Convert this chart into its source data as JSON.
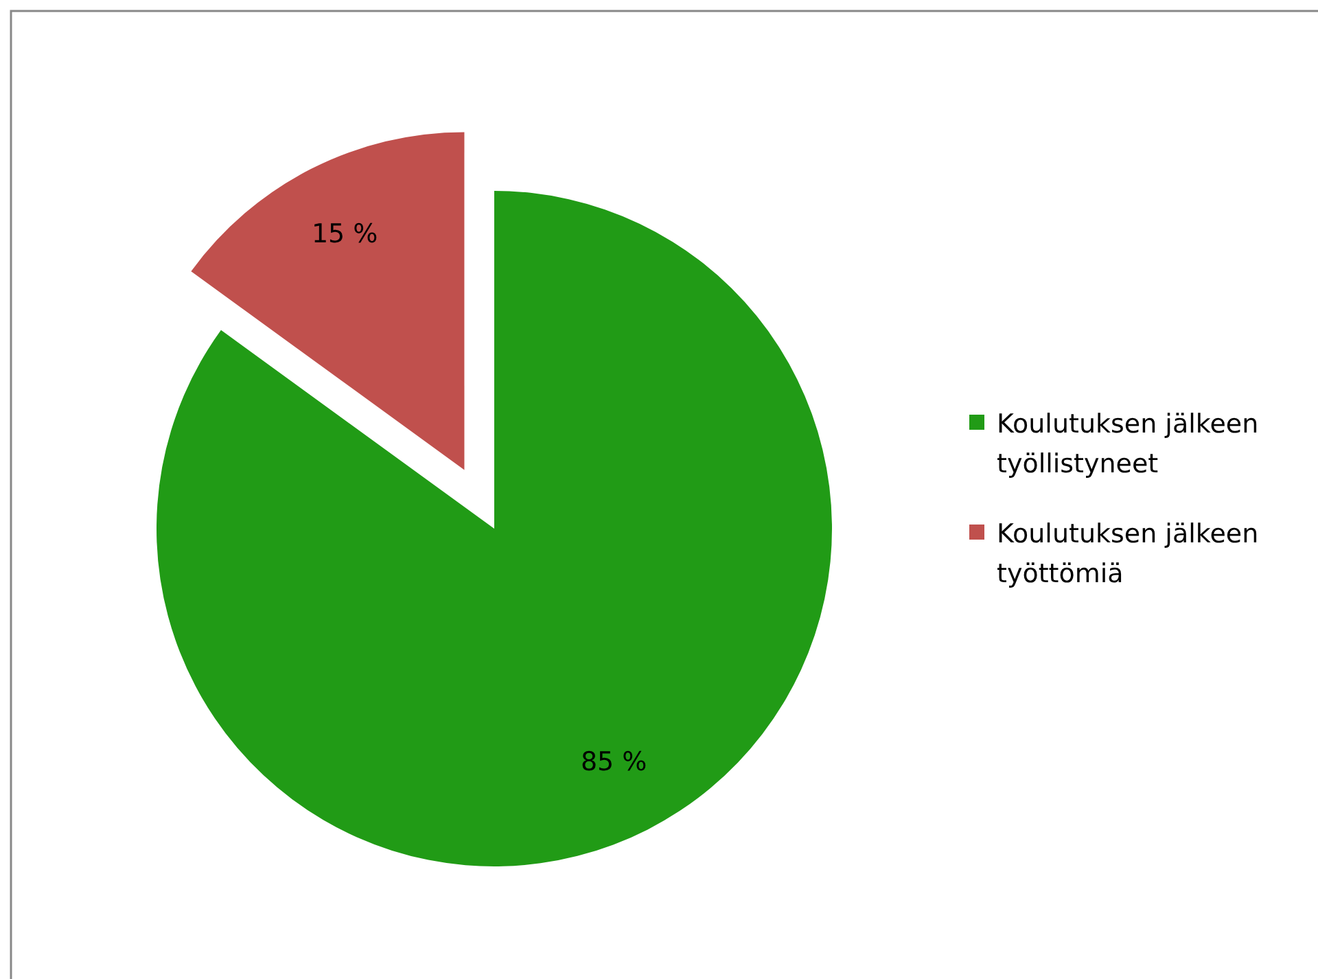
{
  "chart_data": {
    "type": "pie",
    "categories": [
      "Koulutuksen jälkeen työllistyneet",
      "Koulutuksen jälkeen työttömiä"
    ],
    "values": [
      85,
      15
    ],
    "colors": [
      "#219b16",
      "#c0504d"
    ],
    "value_labels": [
      "85 %",
      "15 %"
    ],
    "legend": "right"
  }
}
